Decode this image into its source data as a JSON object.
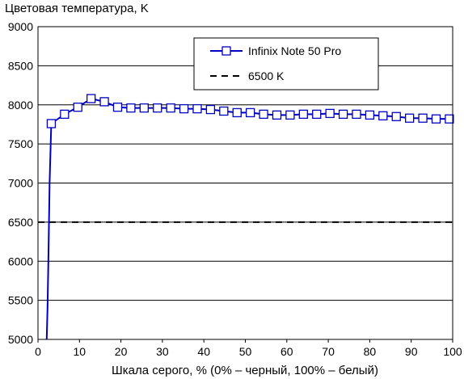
{
  "chart_data": {
    "type": "line",
    "title": "",
    "ylabel": "Цветовая температура, K",
    "xlabel": "Шкала серого, % (0% – черный, 100% – белый)",
    "xlim": [
      0,
      100
    ],
    "ylim": [
      5000,
      9000
    ],
    "xticks": [
      0,
      10,
      20,
      30,
      40,
      50,
      60,
      70,
      80,
      90,
      100
    ],
    "yticks": [
      5000,
      5500,
      6000,
      6500,
      7000,
      7500,
      8000,
      8500,
      9000
    ],
    "grid": "horizontal",
    "legend_position": "top-right",
    "series": [
      {
        "name": "Infinix Note 50 Pro",
        "color": "#0000c0",
        "marker": "square-open",
        "line_style": "solid",
        "x": [
          2.1,
          2.3,
          2.5,
          2.8,
          3.2,
          6.4,
          9.6,
          12.8,
          16.0,
          19.2,
          22.4,
          25.6,
          28.8,
          32.0,
          35.2,
          38.4,
          41.6,
          44.8,
          48.0,
          51.2,
          54.4,
          57.6,
          60.8,
          64.0,
          67.2,
          70.4,
          73.6,
          76.8,
          80.0,
          83.2,
          86.4,
          89.6,
          92.8,
          96.0,
          99.2
        ],
        "y": [
          5000,
          5400,
          6000,
          7000,
          7760,
          7880,
          7970,
          8080,
          8040,
          7970,
          7960,
          7960,
          7960,
          7960,
          7950,
          7950,
          7940,
          7920,
          7900,
          7900,
          7880,
          7870,
          7870,
          7880,
          7880,
          7890,
          7880,
          7880,
          7870,
          7860,
          7850,
          7830,
          7830,
          7820,
          7820
        ],
        "marker_from_index": 4
      },
      {
        "name": "6500 K",
        "color": "#000000",
        "marker": "none",
        "line_style": "dashed",
        "x": [
          0,
          100
        ],
        "y": [
          6500,
          6500
        ]
      }
    ]
  }
}
